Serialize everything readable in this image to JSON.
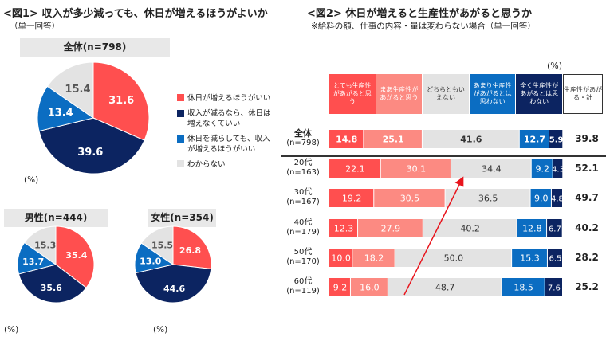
{
  "chart_data": [
    {
      "type": "pie",
      "title": "<図1> 収入が多少減っても、休日が増えるほうがよいか",
      "subtitle": "（単一回答）",
      "unit": "(%)",
      "legend": [
        "休日が増えるほうがいい",
        "収入が減るなら、休日は増えなくていい",
        "休日を減らしても、収入が増えるほうがいい",
        "わからない"
      ],
      "colors": [
        "#ff4f4f",
        "#0c2461",
        "#0b6dc2",
        "#e3e3e3"
      ],
      "pies": [
        {
          "name": "全体(n=798)",
          "values": [
            31.6,
            39.6,
            13.4,
            15.4
          ]
        },
        {
          "name": "男性(n=444)",
          "values": [
            35.4,
            35.6,
            13.7,
            15.3
          ]
        },
        {
          "name": "女性(n=354)",
          "values": [
            26.8,
            44.6,
            13.0,
            15.5
          ]
        }
      ]
    },
    {
      "type": "bar",
      "orientation": "horizontal",
      "stacked": true,
      "title": "<図2> 休日が増えると生産性があがると思うか",
      "subtitle": "※給料の額、仕事の内容・量は変わらない場合（単一回答）",
      "unit": "(%)",
      "series_names": [
        "とても生産性があがると思う",
        "まあ生産性があがると思う",
        "どちらともいえない",
        "あまり生産性があがるとは思わない",
        "全く生産性があがるとは思わない"
      ],
      "colors": [
        "#ff4f4f",
        "#fc8a82",
        "#e3e3e3",
        "#0b6dc2",
        "#0c2461"
      ],
      "total_header": "生産性があがる・計",
      "rows": [
        {
          "label": "全体",
          "n": "(n=798)",
          "values": [
            14.8,
            25.1,
            41.6,
            12.7,
            5.9
          ],
          "total": "39.8"
        },
        {
          "label": "20代",
          "n": "(n=163)",
          "values": [
            22.1,
            30.1,
            34.4,
            9.2,
            4.3
          ],
          "total": "52.1"
        },
        {
          "label": "30代",
          "n": "(n=167)",
          "values": [
            19.2,
            30.5,
            36.5,
            9.0,
            4.8
          ],
          "total": "49.7"
        },
        {
          "label": "40代",
          "n": "(n=179)",
          "values": [
            12.3,
            27.9,
            40.2,
            12.8,
            6.7
          ],
          "total": "40.2"
        },
        {
          "label": "50代",
          "n": "(n=170)",
          "values": [
            10.0,
            18.2,
            50.0,
            15.3,
            6.5
          ],
          "total": "28.2"
        },
        {
          "label": "60代",
          "n": "(n=119)",
          "values": [
            9.2,
            16.0,
            48.7,
            18.5,
            7.6
          ],
          "total": "25.2"
        }
      ]
    }
  ]
}
